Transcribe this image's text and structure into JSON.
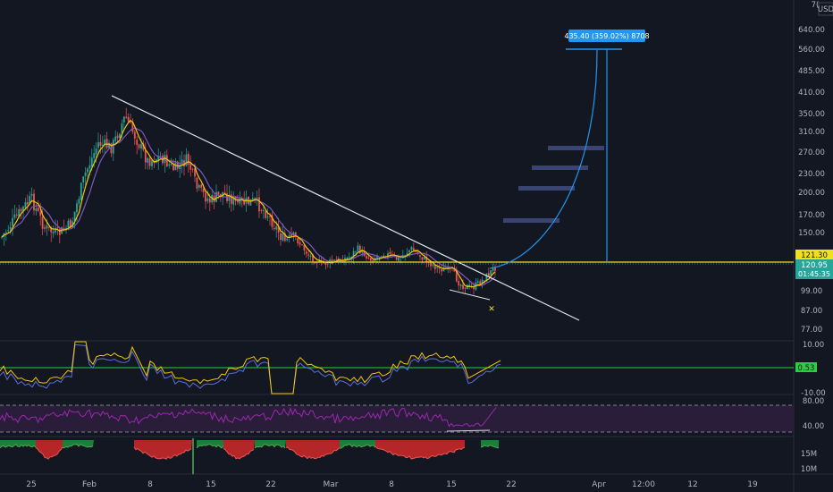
{
  "currency": "USD",
  "top_axis_label": "7(",
  "price_axis": [
    "640.00",
    "560.00",
    "485.00",
    "410.00",
    "350.00",
    "310.00",
    "270.00",
    "230.00",
    "200.00",
    "170.00",
    "150.00",
    "99.00",
    "87.00",
    "77.00"
  ],
  "price_tags": {
    "level": "121.30",
    "last_price": "120.95",
    "countdown": "01:45:35"
  },
  "measure_label": "435.40 (359.02%) 8708",
  "marker": "✕",
  "osc_axis": {
    "top": "10.00",
    "level": "0.53",
    "bottom": "-10.00"
  },
  "rsi_axis": {
    "upper": "80.00",
    "lower": "40.00"
  },
  "vol_axis": {
    "upper": "15M",
    "lower": "10M"
  },
  "date_axis": [
    "25",
    "Feb",
    "8",
    "15",
    "22",
    "Mar",
    "8",
    "15",
    "22",
    "Apr",
    "12:00",
    "12",
    "19"
  ],
  "colors": {
    "background": "#131722",
    "candle_up": "#26a69a",
    "candle_down": "#ef5350",
    "level_line": "#f0e01e",
    "osc_level": "#2ecc40",
    "projection": "#2196f3",
    "rsi": "#9c27b0",
    "ma_fast": "#f7c600",
    "ma_slow": "#7e57c2"
  }
}
